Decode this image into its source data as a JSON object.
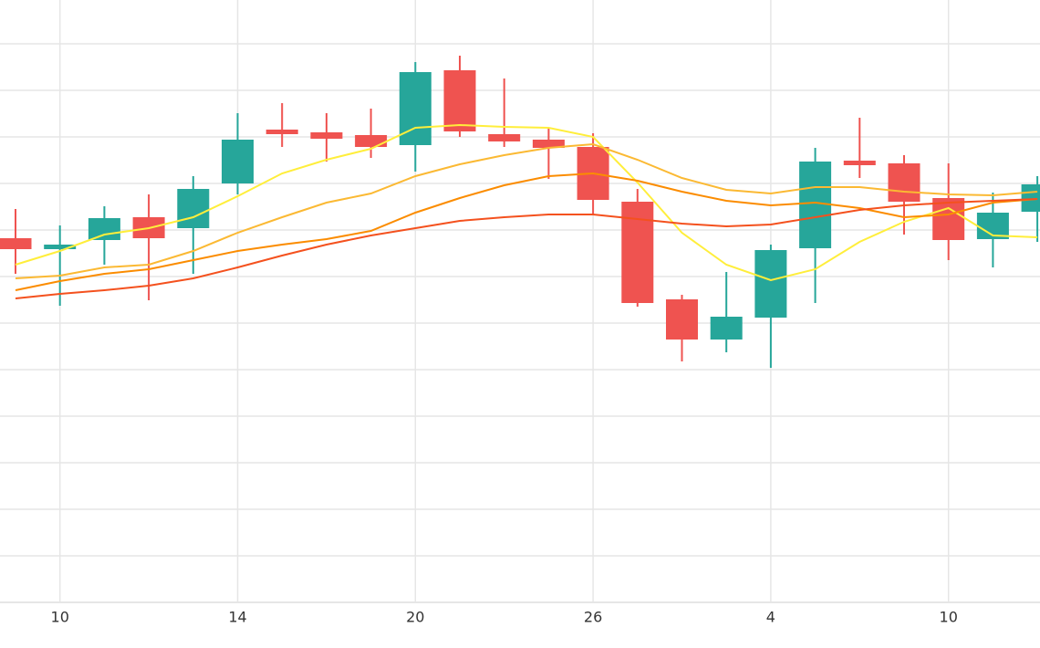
{
  "chart_data": {
    "type": "candlestick",
    "categories": [
      null,
      "10",
      null,
      null,
      null,
      "14",
      null,
      null,
      null,
      "20",
      null,
      null,
      null,
      "26",
      null,
      null,
      null,
      "4",
      null,
      null,
      null,
      "10",
      null,
      null
    ],
    "open": [
      399,
      387,
      397,
      422,
      410,
      459,
      518,
      515,
      512,
      501,
      583,
      513,
      507,
      499,
      439,
      332,
      288,
      312,
      388,
      484,
      481,
      443,
      398,
      428
    ],
    "high": [
      431,
      413,
      434,
      447,
      467,
      536,
      547,
      536,
      541,
      592,
      599,
      574,
      519,
      514,
      453,
      337,
      362,
      392,
      498,
      531,
      490,
      481,
      449,
      467
    ],
    "low": [
      360,
      325,
      370,
      331,
      360,
      447,
      499,
      483,
      487,
      472,
      510,
      499,
      464,
      425,
      324,
      264,
      274,
      257,
      328,
      465,
      403,
      375,
      367,
      395
    ],
    "close": [
      387,
      392,
      421,
      399,
      453,
      507,
      513,
      508,
      499,
      581,
      516,
      505,
      498,
      441,
      328,
      288,
      313,
      386,
      483,
      479,
      439,
      397,
      427,
      458
    ],
    "up_color": "#26a69a",
    "down_color": "#ef5350",
    "series": [
      {
        "color": "#ffee3b",
        "values": [
          370,
          385,
          403,
          410,
          422,
          445,
          470,
          485,
          497,
          520,
          523,
          521,
          520,
          510,
          460,
          405,
          370,
          353,
          365,
          395,
          417,
          432,
          402,
          400
        ]
      },
      {
        "color": "#fbb933",
        "values": [
          355,
          358,
          367,
          370,
          385,
          405,
          422,
          438,
          448,
          467,
          480,
          490,
          498,
          502,
          485,
          465,
          452,
          448,
          455,
          455,
          450,
          447,
          446,
          450
        ]
      },
      {
        "color": "#fb8c00",
        "values": [
          342,
          352,
          360,
          365,
          375,
          385,
          392,
          398,
          407,
          427,
          443,
          457,
          467,
          470,
          462,
          450,
          440,
          435,
          438,
          432,
          422,
          425,
          438,
          442
        ]
      },
      {
        "color": "#f4511e",
        "values": [
          333,
          338,
          342,
          347,
          355,
          367,
          380,
          392,
          402,
          410,
          418,
          422,
          425,
          425,
          420,
          415,
          412,
          414,
          422,
          430,
          435,
          438,
          440,
          442
        ]
      }
    ],
    "ylim": [
      0,
      660
    ],
    "yticks": [
      0,
      51,
      102,
      153,
      204,
      255,
      306,
      357,
      408,
      459,
      510,
      561,
      612
    ],
    "grid": true
  }
}
